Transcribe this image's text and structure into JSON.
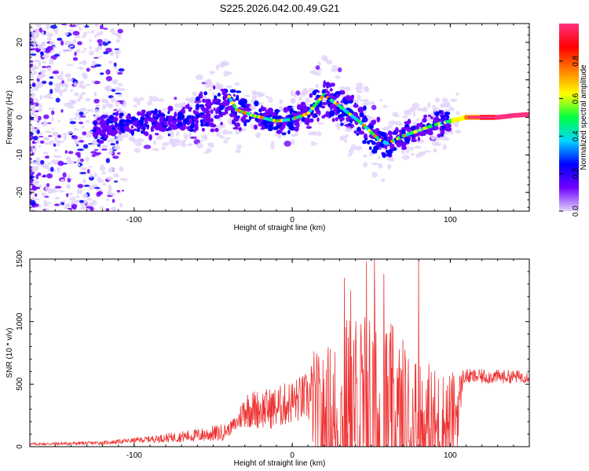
{
  "page": {
    "title": "S225.2026.042.00.49.G21"
  },
  "chart_data": [
    {
      "type": "heatmap",
      "title": "S225.2026.042.00.49.G21",
      "xlabel": "Height of straight line (km)",
      "ylabel": "Frequency (Hz)",
      "xlim": [
        -166,
        150
      ],
      "ylim": [
        -25,
        25
      ],
      "x_ticks": [
        -100,
        0,
        100
      ],
      "x_tick_labels": [
        "-100",
        "0",
        "100"
      ],
      "y_ticks": [
        -20,
        -10,
        0,
        10,
        20
      ],
      "y_tick_labels": [
        "-20",
        "-10",
        "0",
        "10",
        "20"
      ],
      "ridge": {
        "x": [
          -120,
          -100,
          -80,
          -60,
          -45,
          -40,
          -35,
          -25,
          -10,
          0,
          10,
          20,
          30,
          45,
          55,
          60,
          70,
          80,
          90,
          100,
          110,
          120,
          130,
          140,
          150
        ],
        "y": [
          -3,
          -2,
          -1.5,
          0,
          3,
          5.5,
          2,
          0.5,
          -1,
          -0.5,
          1,
          6,
          3,
          -2,
          -6,
          -7,
          -5,
          -3.5,
          -2,
          -1,
          0,
          0,
          0,
          0.5,
          0.8
        ]
      },
      "colorbar": {
        "label": "Normalized spectral amplitude",
        "range": [
          0.0,
          1.0
        ],
        "ticks": [
          0.0,
          0.2,
          0.4,
          0.6,
          0.8
        ],
        "tick_labels": [
          "0.0",
          "0.2",
          "0.4",
          "0.6",
          "0.8"
        ],
        "colors": [
          "#e2d3fa",
          "#7000ff",
          "#0000ff",
          "#00d8ff",
          "#00ff40",
          "#ffff00",
          "#ff8000",
          "#ff0000",
          "#ff3080"
        ]
      }
    },
    {
      "type": "line",
      "xlabel": "Height of straight line (km)",
      "ylabel": "SNR (10 * v/v)",
      "xlim": [
        -166,
        150
      ],
      "ylim": [
        0,
        1500
      ],
      "x_ticks": [
        -100,
        0,
        100
      ],
      "x_tick_labels": [
        "-100",
        "0",
        "100"
      ],
      "y_ticks": [
        0,
        500,
        1000,
        1500
      ],
      "y_tick_labels": [
        "0",
        "500",
        "1000",
        "1500"
      ],
      "color": "#ee3333",
      "envelope": {
        "x": [
          -166,
          -120,
          -100,
          -80,
          -60,
          -45,
          -40,
          -35,
          -30,
          -20,
          -10,
          0,
          10,
          14,
          18,
          25,
          35,
          45,
          55,
          65,
          75,
          85,
          95,
          105,
          108,
          120,
          150
        ],
        "base": [
          20,
          30,
          50,
          70,
          90,
          110,
          140,
          190,
          300,
          300,
          310,
          360,
          400,
          350,
          120,
          80,
          80,
          60,
          60,
          60,
          80,
          100,
          120,
          300,
          560,
          560,
          560
        ],
        "amp": [
          10,
          15,
          20,
          35,
          55,
          70,
          50,
          70,
          150,
          160,
          170,
          180,
          200,
          450,
          600,
          800,
          1000,
          1100,
          1050,
          900,
          750,
          600,
          500,
          300,
          60,
          60,
          50
        ]
      },
      "spikes": [
        {
          "x": 33,
          "y": 1350
        },
        {
          "x": 47,
          "y": 1480
        },
        {
          "x": 52,
          "y": 1500
        },
        {
          "x": 80,
          "y": 1500
        },
        {
          "x": 37,
          "y": 1250
        },
        {
          "x": 58,
          "y": 1380
        }
      ]
    }
  ]
}
